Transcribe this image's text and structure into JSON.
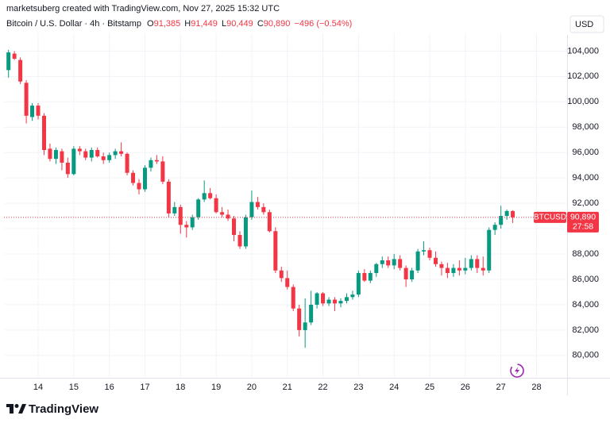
{
  "chart_data": {
    "type": "candlestick",
    "author_line": "marketsuberg created with TradingView.com, Nov 27, 2025 15:32 UTC",
    "symbol": "Bitcoin / U.S. Dollar · 4h · Bitstamp",
    "ohlc": [
      {
        "label": "O",
        "value": "91,385"
      },
      {
        "label": "H",
        "value": "91,449"
      },
      {
        "label": "L",
        "value": "90,449"
      },
      {
        "label": "C",
        "value": "90,890"
      }
    ],
    "change": "−496 (−0.54%)",
    "currency": "USD",
    "price_tag": {
      "symbol": "BTCUSD",
      "value": 90890,
      "label": "90,890",
      "countdown": "27:58"
    },
    "brand": "TradingView",
    "up_color": "#089981",
    "down_color": "#f23645",
    "grid": true,
    "xlim": [
      13.04,
      28.86
    ],
    "xticks": [
      14,
      15,
      16,
      17,
      18,
      19,
      20,
      21,
      22,
      23,
      24,
      25,
      26,
      27,
      28
    ],
    "ylim": [
      78300,
      105400
    ],
    "yticks": [
      {
        "value": 80000,
        "label": "80,000"
      },
      {
        "value": 82000,
        "label": "82,000"
      },
      {
        "value": 84000,
        "label": "84,000"
      },
      {
        "value": 86000,
        "label": "86,000"
      },
      {
        "value": 88000,
        "label": "88,000"
      },
      {
        "value": 90000,
        "label": "90,000"
      },
      {
        "value": 92000,
        "label": "92,000"
      },
      {
        "value": 94000,
        "label": "94,000"
      },
      {
        "value": 96000,
        "label": "96,000"
      },
      {
        "value": 98000,
        "label": "98,000"
      },
      {
        "value": 100000,
        "label": "100,000"
      },
      {
        "value": 102000,
        "label": "102,000"
      },
      {
        "value": 104000,
        "label": "104,000"
      }
    ],
    "x": [
      13.167,
      13.333,
      13.5,
      13.667,
      13.833,
      14,
      14.167,
      14.333,
      14.5,
      14.667,
      14.833,
      15,
      15.167,
      15.333,
      15.5,
      15.667,
      15.833,
      16,
      16.167,
      16.333,
      16.5,
      16.667,
      16.833,
      17,
      17.167,
      17.333,
      17.5,
      17.667,
      17.833,
      18,
      18.167,
      18.333,
      18.5,
      18.667,
      18.833,
      19,
      19.167,
      19.333,
      19.5,
      19.667,
      19.833,
      20,
      20.167,
      20.333,
      20.5,
      20.667,
      20.833,
      21,
      21.167,
      21.333,
      21.5,
      21.667,
      21.833,
      22,
      22.167,
      22.333,
      22.5,
      22.667,
      22.833,
      23,
      23.167,
      23.333,
      23.5,
      23.667,
      23.833,
      24,
      24.167,
      24.333,
      24.5,
      24.667,
      24.833,
      25,
      25.167,
      25.333,
      25.5,
      25.667,
      25.833,
      26,
      26.167,
      26.333,
      26.5,
      26.667,
      26.833,
      27,
      27.167,
      27.333
    ],
    "open": [
      102500,
      103800,
      103300,
      101500,
      98800,
      99700,
      98900,
      96300,
      95500,
      96100,
      95200,
      94300,
      96300,
      96100,
      95600,
      96200,
      95700,
      95400,
      95800,
      96100,
      95900,
      94400,
      93600,
      93100,
      94800,
      95400,
      95300,
      93700,
      91200,
      91700,
      90300,
      90100,
      90900,
      92300,
      92800,
      92400,
      91300,
      91100,
      90800,
      89500,
      88600,
      90900,
      92100,
      91700,
      91300,
      89800,
      86700,
      86100,
      85400,
      83700,
      82000,
      82600,
      84000,
      84900,
      84100,
      84400,
      84100,
      84300,
      84600,
      84800,
      86500,
      85900,
      86500,
      87200,
      87500,
      87100,
      87600,
      86900,
      86000,
      86700,
      88200,
      88300,
      87700,
      87200,
      86900,
      86500,
      86900,
      86700,
      86900,
      87600,
      86900,
      86700,
      89900,
      90300,
      91000,
      91385
    ],
    "high": [
      104100,
      104000,
      103500,
      101700,
      99900,
      99900,
      99100,
      96700,
      96400,
      96300,
      95600,
      96500,
      96500,
      96300,
      96400,
      96400,
      96000,
      96000,
      96300,
      96800,
      96000,
      94600,
      93900,
      95000,
      95600,
      95800,
      95700,
      93900,
      92100,
      91900,
      90600,
      91100,
      92400,
      93800,
      93200,
      92700,
      91700,
      91500,
      91000,
      89800,
      91100,
      93000,
      92500,
      92000,
      91500,
      90100,
      87000,
      86700,
      85600,
      84000,
      84500,
      85100,
      85000,
      85000,
      84600,
      84600,
      84500,
      84900,
      85100,
      86700,
      86800,
      86700,
      87300,
      87800,
      87800,
      88000,
      87900,
      87100,
      86900,
      88400,
      89000,
      88500,
      88200,
      87400,
      87300,
      87200,
      87500,
      87700,
      87900,
      87900,
      87800,
      90100,
      90500,
      91800,
      91500,
      91449
    ],
    "low": [
      101900,
      103300,
      101400,
      98300,
      98500,
      98600,
      95800,
      95300,
      95100,
      94600,
      94000,
      94200,
      95800,
      95400,
      95300,
      95600,
      95100,
      95200,
      95500,
      95700,
      94200,
      93400,
      92700,
      92900,
      94500,
      95100,
      93500,
      90900,
      91000,
      89600,
      89300,
      89900,
      90700,
      92100,
      92300,
      91200,
      90900,
      90600,
      89000,
      88400,
      88400,
      90700,
      91500,
      91100,
      89700,
      86500,
      85800,
      85200,
      83500,
      81500,
      80600,
      82400,
      83700,
      83900,
      83900,
      83500,
      83800,
      84100,
      84400,
      84600,
      85800,
      85700,
      86200,
      86900,
      86900,
      86800,
      86700,
      85400,
      85800,
      86500,
      87900,
      87500,
      87000,
      86300,
      86100,
      86200,
      86300,
      86400,
      86700,
      86500,
      86300,
      86500,
      89500,
      90000,
      90700,
      90449
    ],
    "close": [
      103900,
      103400,
      101600,
      98900,
      99700,
      98900,
      96200,
      95500,
      96200,
      95200,
      94300,
      96300,
      96100,
      95600,
      96200,
      95700,
      95400,
      95800,
      96100,
      95900,
      94400,
      93600,
      93100,
      94800,
      95400,
      95300,
      93700,
      91200,
      91700,
      90300,
      90100,
      90900,
      92300,
      92800,
      92400,
      91300,
      91100,
      90800,
      89500,
      88600,
      90900,
      92100,
      91700,
      91300,
      89800,
      86700,
      86100,
      85400,
      83700,
      82000,
      82600,
      84000,
      84900,
      84100,
      84400,
      84100,
      84300,
      84600,
      84800,
      86500,
      85900,
      86500,
      87200,
      87500,
      87100,
      87600,
      86900,
      86000,
      86700,
      88200,
      88300,
      87700,
      87200,
      86900,
      86500,
      86900,
      86700,
      86900,
      87600,
      86900,
      86700,
      89900,
      90300,
      91000,
      91385,
      90890
    ]
  }
}
